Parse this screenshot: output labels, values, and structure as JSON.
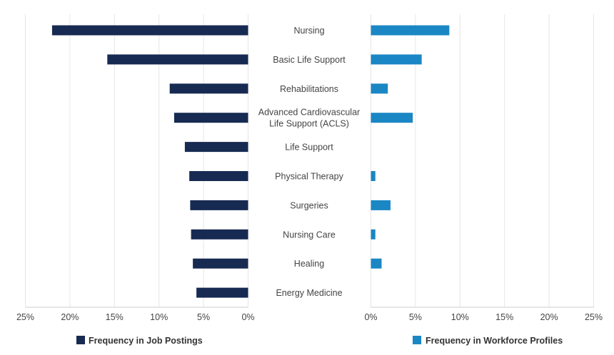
{
  "chart_data": {
    "type": "bar",
    "orientation": "horizontal-butterfly",
    "categories": [
      "Nursing",
      "Basic Life Support",
      "Rehabilitations",
      "Advanced Cardiovascular Life Support (ACLS)",
      "Life Support",
      "Physical Therapy",
      "Surgeries",
      "Nursing Care",
      "Healing",
      "Energy Medicine"
    ],
    "category_lines": [
      [
        "Nursing"
      ],
      [
        "Basic Life Support"
      ],
      [
        "Rehabilitations"
      ],
      [
        "Advanced Cardiovascular",
        "Life Support (ACLS)"
      ],
      [
        "Life Support"
      ],
      [
        "Physical Therapy"
      ],
      [
        "Surgeries"
      ],
      [
        "Nursing Care"
      ],
      [
        "Healing"
      ],
      [
        "Energy Medicine"
      ]
    ],
    "series": [
      {
        "name": "Frequency in Job Postings",
        "color": "#172a52",
        "values": [
          22.0,
          15.8,
          8.8,
          8.3,
          7.1,
          6.6,
          6.5,
          6.4,
          6.2,
          5.8
        ]
      },
      {
        "name": "Frequency in Workforce Profiles",
        "color": "#1a87c4",
        "values": [
          8.8,
          5.7,
          1.9,
          4.7,
          0,
          0.5,
          2.2,
          0.5,
          1.2,
          0
        ]
      }
    ],
    "xlim": [
      0,
      25
    ],
    "ticks": [
      25,
      20,
      15,
      10,
      5,
      0
    ],
    "tick_labels_left": [
      "25%",
      "20%",
      "15%",
      "10%",
      "5%",
      "0%"
    ],
    "tick_labels_right": [
      "0%",
      "5%",
      "10%",
      "15%",
      "20%",
      "25%"
    ],
    "grid": true,
    "legend_position": "bottom"
  }
}
